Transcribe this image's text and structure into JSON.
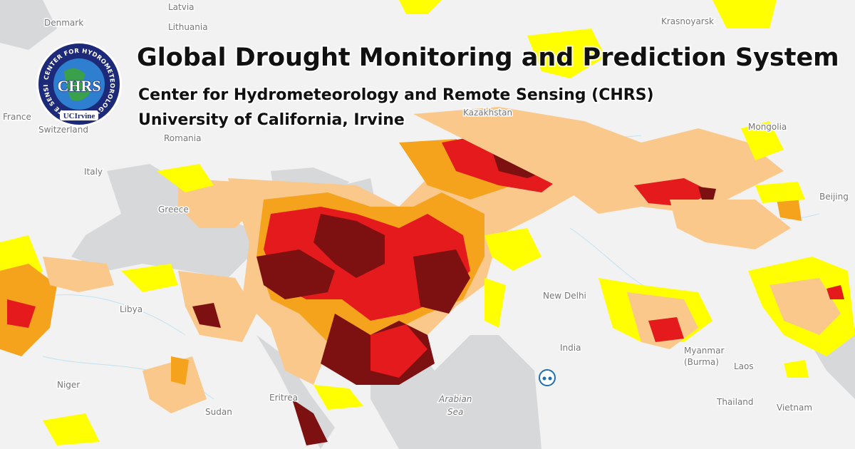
{
  "header": {
    "title": "Global Drought Monitoring and Prediction System",
    "subtitle": "Center for Hydrometeorology and Remote Sensing (CHRS)",
    "institution": "University of California, Irvine"
  },
  "logo": {
    "ring_text": "CENTER FOR HYDROMETEOROLOGY & REMOTE SENSING",
    "acronym": "CHRS",
    "university": "UCIrvine"
  },
  "map": {
    "labels": [
      "Latvia",
      "Lithuania",
      "Denmark",
      "France",
      "Switzerland",
      "Italy",
      "Romania",
      "Greece",
      "Libya",
      "Niger",
      "Sudan",
      "Eritrea",
      "Kazakhstan",
      "Mongolia",
      "Krasnoyarsk",
      "New Delhi",
      "India",
      "Arabian",
      "Sea",
      "Myanmar",
      "(Burma)",
      "Laos",
      "Thailand",
      "Vietnam",
      "Beijing"
    ]
  }
}
